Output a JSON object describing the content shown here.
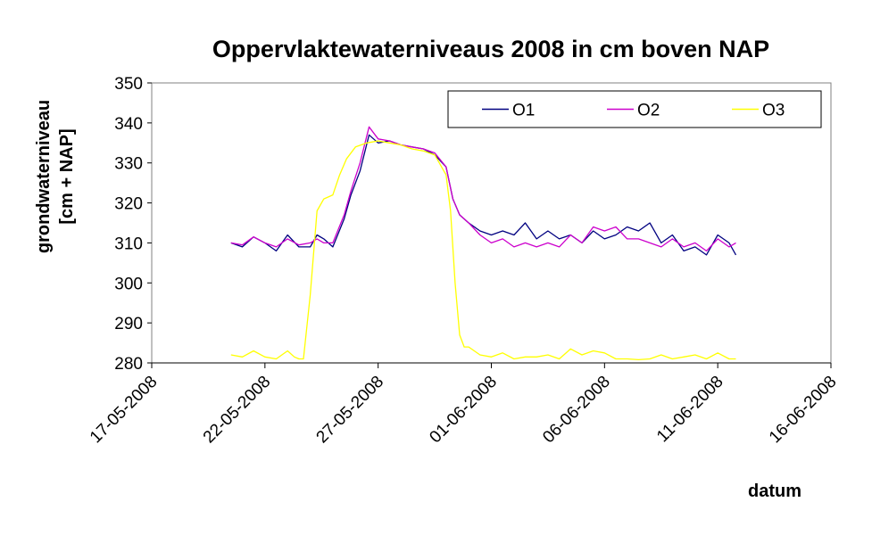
{
  "chart_data": {
    "type": "line",
    "title": "Oppervlaktewaterniveaus 2008 in cm boven NAP",
    "xlabel": "datum",
    "ylabel_lines": [
      "grondwaterniveau",
      "[cm + NAP]"
    ],
    "x_tick_labels": [
      "17-05-2008",
      "22-05-2008",
      "27-05-2008",
      "01-06-2008",
      "06-06-2008",
      "11-06-2008",
      "16-06-2008"
    ],
    "y_ticks": [
      280,
      290,
      300,
      310,
      320,
      330,
      340,
      350
    ],
    "ylim": [
      280,
      350
    ],
    "x_range_days": [
      0,
      30
    ],
    "grid": false,
    "legend_position": "top-right",
    "series": [
      {
        "name": "O1",
        "color": "#000080",
        "x": [
          3.5,
          4.0,
          4.5,
          5.0,
          5.5,
          6.0,
          6.5,
          7.0,
          7.3,
          7.6,
          8.0,
          8.5,
          8.8,
          9.2,
          9.6,
          10.0,
          10.5,
          11.0,
          11.5,
          12.0,
          12.5,
          13.0,
          13.3,
          13.6,
          14.0,
          14.5,
          15.0,
          15.5,
          16.0,
          16.5,
          17.0,
          17.5,
          18.0,
          18.5,
          19.0,
          19.5,
          20.0,
          20.5,
          21.0,
          21.5,
          22.0,
          22.5,
          23.0,
          23.5,
          24.0,
          24.5,
          25.0,
          25.5,
          25.8
        ],
        "y": [
          310,
          309,
          311.5,
          310,
          308,
          312,
          309,
          309,
          312,
          311,
          309,
          316,
          322,
          328,
          337,
          335,
          335.5,
          334.5,
          334,
          333.5,
          332,
          329,
          321,
          317,
          315,
          313,
          312,
          313,
          312,
          315,
          311,
          313,
          311,
          312,
          310,
          313,
          311,
          312,
          314,
          313,
          315,
          310,
          312,
          308,
          309,
          307,
          312,
          310,
          307
        ]
      },
      {
        "name": "O2",
        "color": "#cc00cc",
        "x": [
          3.5,
          4.0,
          4.5,
          5.0,
          5.5,
          6.0,
          6.5,
          7.0,
          7.3,
          7.6,
          8.0,
          8.5,
          8.8,
          9.2,
          9.6,
          10.0,
          10.5,
          11.0,
          11.5,
          12.0,
          12.5,
          13.0,
          13.3,
          13.6,
          14.0,
          14.5,
          15.0,
          15.5,
          16.0,
          16.5,
          17.0,
          17.5,
          18.0,
          18.5,
          19.0,
          19.5,
          20.0,
          20.5,
          21.0,
          21.5,
          22.0,
          22.5,
          23.0,
          23.5,
          24.0,
          24.5,
          25.0,
          25.5,
          25.8
        ],
        "y": [
          310,
          309.5,
          311.5,
          310,
          309,
          311,
          309.5,
          310,
          311,
          310,
          310,
          317,
          323,
          330,
          339,
          336,
          335.5,
          334.5,
          334,
          333.5,
          332.5,
          329,
          321,
          317,
          315,
          312,
          310,
          311,
          309,
          310,
          309,
          310,
          309,
          312,
          310,
          314,
          313,
          314,
          311,
          311,
          310,
          309,
          311,
          309,
          310,
          308,
          311,
          309,
          310
        ]
      },
      {
        "name": "O3",
        "color": "#ffff00",
        "x": [
          3.5,
          4.0,
          4.5,
          5.0,
          5.5,
          6.0,
          6.3,
          6.5,
          6.7,
          7.0,
          7.3,
          7.6,
          8.0,
          8.3,
          8.6,
          9.0,
          9.5,
          10.0,
          10.5,
          11.0,
          11.5,
          12.0,
          12.5,
          13.0,
          13.2,
          13.4,
          13.6,
          13.8,
          14.0,
          14.5,
          15.0,
          15.5,
          16.0,
          16.5,
          17.0,
          17.5,
          18.0,
          18.5,
          19.0,
          19.5,
          20.0,
          20.5,
          21.0,
          21.5,
          22.0,
          22.5,
          23.0,
          23.5,
          24.0,
          24.5,
          25.0,
          25.5,
          25.8
        ],
        "y": [
          282,
          281.5,
          283,
          281.5,
          281,
          283,
          281.5,
          281,
          281,
          297,
          318,
          321,
          322,
          327,
          331,
          334,
          335,
          335.5,
          335,
          334.5,
          333.5,
          333,
          332,
          327,
          318,
          300,
          287,
          284,
          284,
          282,
          281.5,
          282.5,
          281,
          281.5,
          281.5,
          282,
          281,
          283.5,
          282,
          283,
          282.5,
          281,
          281,
          280.8,
          281,
          282,
          281,
          281.5,
          282,
          281,
          282.5,
          281,
          281
        ]
      }
    ]
  }
}
